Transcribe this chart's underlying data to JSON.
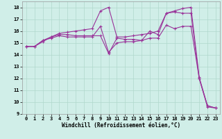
{
  "xlabel": "Windchill (Refroidissement éolien,°C)",
  "bg_color": "#d0eee8",
  "grid_color": "#b0d8cc",
  "line_color": "#993399",
  "xlim": [
    -0.5,
    23.5
  ],
  "ylim": [
    9,
    18.5
  ],
  "yticks": [
    9,
    10,
    11,
    12,
    13,
    14,
    15,
    16,
    17,
    18
  ],
  "xticks": [
    0,
    1,
    2,
    3,
    4,
    5,
    6,
    7,
    8,
    9,
    10,
    11,
    12,
    13,
    14,
    15,
    16,
    17,
    18,
    19,
    20,
    21,
    22,
    23
  ],
  "series1_x": [
    0,
    1,
    2,
    3,
    4,
    5,
    6,
    7,
    8,
    9,
    10,
    11,
    12,
    13,
    14,
    15,
    16,
    17,
    18,
    19,
    20,
    21,
    22,
    23
  ],
  "series1_y": [
    14.7,
    14.7,
    15.2,
    15.5,
    15.7,
    15.7,
    15.6,
    15.6,
    15.6,
    15.6,
    14.1,
    15.4,
    15.3,
    15.3,
    15.2,
    15.4,
    15.4,
    16.5,
    16.2,
    16.4,
    16.4,
    12.0,
    9.7,
    9.5
  ],
  "series2_x": [
    0,
    1,
    2,
    3,
    4,
    5,
    6,
    7,
    8,
    9,
    10,
    11,
    12,
    13,
    14,
    15,
    16,
    17,
    18,
    19,
    20,
    21,
    22,
    23
  ],
  "series2_y": [
    14.7,
    14.7,
    15.1,
    15.5,
    15.8,
    15.9,
    16.0,
    16.1,
    16.2,
    17.7,
    18.0,
    15.5,
    15.5,
    15.6,
    15.7,
    15.8,
    16.0,
    17.5,
    17.7,
    17.9,
    18.0,
    12.1,
    9.7,
    9.5
  ],
  "series3_x": [
    0,
    1,
    2,
    3,
    4,
    5,
    6,
    7,
    8,
    9,
    10,
    11,
    12,
    13,
    14,
    15,
    16,
    17,
    18,
    19,
    20,
    21,
    22,
    23
  ],
  "series3_y": [
    14.7,
    14.7,
    15.2,
    15.4,
    15.6,
    15.5,
    15.5,
    15.5,
    15.5,
    16.4,
    14.2,
    15.0,
    15.1,
    15.1,
    15.2,
    16.0,
    15.7,
    17.5,
    17.6,
    17.5,
    17.5,
    12.0,
    9.6,
    9.5
  ],
  "xlabel_fontsize": 5.5,
  "tick_fontsize": 5,
  "linewidth": 0.8,
  "markersize": 2.5
}
